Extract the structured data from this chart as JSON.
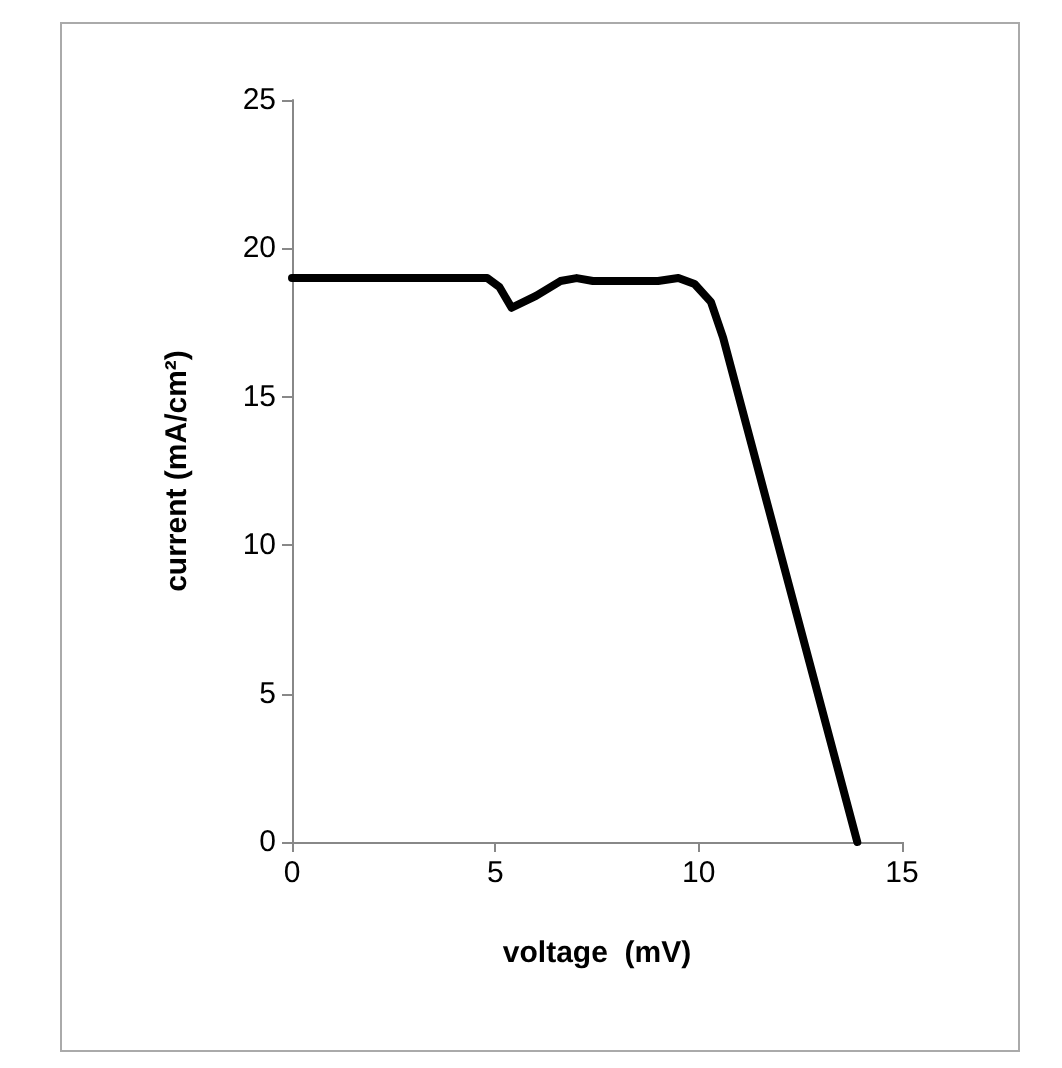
{
  "chart_data": {
    "type": "line",
    "xlabel": "voltage  (mV)",
    "ylabel": "current (mA/cm²)",
    "xlim": [
      0,
      15
    ],
    "xticks": [
      0,
      5,
      10,
      15
    ],
    "ylim": [
      0,
      25
    ],
    "yticks": [
      0,
      5,
      10,
      15,
      20,
      25
    ],
    "grid": false,
    "marker": "none",
    "line_style": "solid",
    "series": [
      {
        "color": "#000000",
        "x": [
          0,
          4.8,
          5.1,
          5.4,
          6.0,
          6.6,
          7.0,
          7.4,
          9.0,
          9.5,
          9.9,
          10.3,
          10.6,
          13.9
        ],
        "values": [
          19,
          19,
          18.7,
          18,
          18.4,
          18.9,
          19,
          18.9,
          18.9,
          19,
          18.8,
          18.2,
          17,
          0
        ]
      }
    ]
  }
}
